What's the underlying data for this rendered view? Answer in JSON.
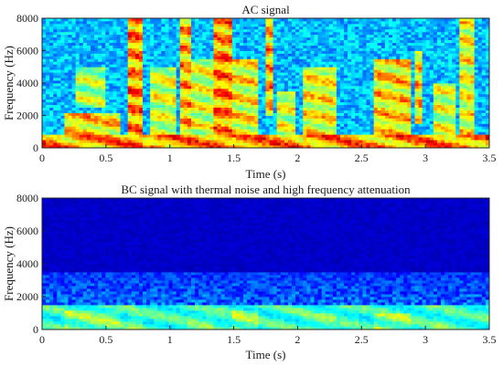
{
  "chart_data": [
    {
      "type": "heatmap",
      "title": "AC signal",
      "xlabel": "Time (s)",
      "ylabel": "Frequency (Hz)",
      "xlim": [
        0,
        3.5
      ],
      "ylim": [
        0,
        8000
      ],
      "x_ticks": [
        0,
        0.5,
        1,
        1.5,
        2,
        2.5,
        3,
        3.5
      ],
      "x_tick_labels": [
        "0",
        "0.5",
        "1",
        "1.5",
        "2",
        "2.5",
        "3",
        "3.5"
      ],
      "y_ticks": [
        0,
        2000,
        4000,
        6000,
        8000
      ],
      "y_tick_labels": [
        "0",
        "2000",
        "4000",
        "6000",
        "8000"
      ],
      "colormap": "jet",
      "background_color": "#1560d8",
      "high_energy_regions": [
        {
          "t": [
            0.0,
            3.5
          ],
          "f": [
            0,
            800
          ],
          "level": 0.95
        },
        {
          "t": [
            0.17,
            0.62
          ],
          "f": [
            0,
            2200
          ],
          "level": 0.85
        },
        {
          "t": [
            0.25,
            0.5
          ],
          "f": [
            2500,
            5000
          ],
          "level": 0.7
        },
        {
          "t": [
            0.67,
            0.8
          ],
          "f": [
            0,
            8000
          ],
          "level": 0.95
        },
        {
          "t": [
            0.85,
            1.05
          ],
          "f": [
            0,
            5000
          ],
          "level": 0.75
        },
        {
          "t": [
            1.08,
            1.16
          ],
          "f": [
            0,
            8000
          ],
          "level": 0.9
        },
        {
          "t": [
            1.15,
            1.33
          ],
          "f": [
            500,
            5500
          ],
          "level": 0.75
        },
        {
          "t": [
            1.35,
            1.48
          ],
          "f": [
            0,
            8000
          ],
          "level": 0.95
        },
        {
          "t": [
            1.5,
            1.7
          ],
          "f": [
            500,
            5500
          ],
          "level": 0.8
        },
        {
          "t": [
            1.75,
            1.82
          ],
          "f": [
            2000,
            8000
          ],
          "level": 0.9
        },
        {
          "t": [
            1.85,
            1.98
          ],
          "f": [
            0,
            3500
          ],
          "level": 0.75
        },
        {
          "t": [
            2.05,
            2.3
          ],
          "f": [
            0,
            5000
          ],
          "level": 0.8
        },
        {
          "t": [
            2.6,
            2.9
          ],
          "f": [
            500,
            5500
          ],
          "level": 0.85
        },
        {
          "t": [
            2.92,
            2.98
          ],
          "f": [
            1500,
            6000
          ],
          "level": 0.85
        },
        {
          "t": [
            3.05,
            3.25
          ],
          "f": [
            500,
            4000
          ],
          "level": 0.75
        },
        {
          "t": [
            3.28,
            3.38
          ],
          "f": [
            500,
            8000
          ],
          "level": 0.8
        }
      ]
    },
    {
      "type": "heatmap",
      "title": "BC signal with thermal noise and high frequency attenuation",
      "xlabel": "Time (s)",
      "ylabel": "Frequency (Hz)",
      "xlim": [
        0,
        3.5
      ],
      "ylim": [
        0,
        8000
      ],
      "x_ticks": [
        0,
        0.5,
        1,
        1.5,
        2,
        2.5,
        3,
        3.5
      ],
      "x_tick_labels": [
        "0",
        "0.5",
        "1",
        "1.5",
        "2",
        "2.5",
        "3",
        "3.5"
      ],
      "y_ticks": [
        0,
        2000,
        4000,
        6000,
        8000
      ],
      "y_tick_labels": [
        "0",
        "2000",
        "4000",
        "6000",
        "8000"
      ],
      "colormap": "jet",
      "background_color": "#0a1a9a",
      "noise_cutoff_hz": 3500,
      "high_energy_regions": [
        {
          "t": [
            0.0,
            3.5
          ],
          "f": [
            0,
            1500
          ],
          "level": 0.55
        },
        {
          "t": [
            0.17,
            0.62
          ],
          "f": [
            0,
            1200
          ],
          "level": 0.65
        },
        {
          "t": [
            0.67,
            0.8
          ],
          "f": [
            0,
            1000
          ],
          "level": 0.6
        },
        {
          "t": [
            1.15,
            1.33
          ],
          "f": [
            0,
            1000
          ],
          "level": 0.6
        },
        {
          "t": [
            1.5,
            1.7
          ],
          "f": [
            0,
            1200
          ],
          "level": 0.65
        },
        {
          "t": [
            2.05,
            2.3
          ],
          "f": [
            0,
            1000
          ],
          "level": 0.6
        },
        {
          "t": [
            2.6,
            2.9
          ],
          "f": [
            0,
            1000
          ],
          "level": 0.65
        },
        {
          "t": [
            3.05,
            3.25
          ],
          "f": [
            0,
            900
          ],
          "level": 0.6
        }
      ]
    }
  ]
}
